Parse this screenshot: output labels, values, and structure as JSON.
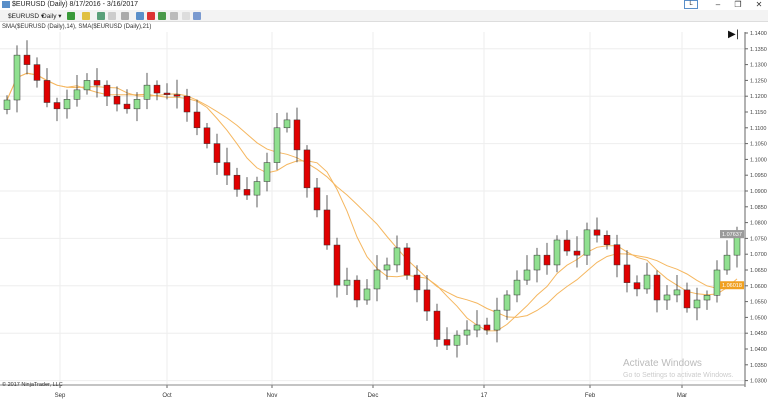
{
  "window": {
    "title": "$EURUSD (Daily)  8/17/2016 - 3/16/2017"
  },
  "toolbar": {
    "instrument": "$EURUSD",
    "interval": "Daily",
    "link_button": "L"
  },
  "legend": "SMA($EURUSD (Daily),14), SMA($EURUSD (Daily),21)",
  "copyright": "© 2017 NinjaTrader, LLC",
  "watermark": {
    "line1": "Activate Windows",
    "line2": "Go to Settings to activate Windows."
  },
  "colors": {
    "up": "#90e090",
    "down": "#e00000",
    "sma": "#f5b760",
    "last_price_bg": "#9a9a9a",
    "sma_label_bg": "#f0a020"
  },
  "chart_data": {
    "type": "candlestick",
    "yticks": [
      "1.1400",
      "1.1350",
      "1.1300",
      "1.1250",
      "1.1200",
      "1.1150",
      "1.1100",
      "1.1050",
      "1.1000",
      "1.0950",
      "1.0900",
      "1.0850",
      "1.0800",
      "1.0750",
      "1.0700",
      "1.0650",
      "1.0600",
      "1.0550",
      "1.0500",
      "1.0450",
      "1.0400",
      "1.0350",
      "1.0300"
    ],
    "ylim": [
      1.03,
      1.14
    ],
    "xticks": [
      "Sep",
      "Oct",
      "Nov",
      "Dec",
      "17",
      "Feb",
      "Mar"
    ],
    "close": [
      1.1188,
      1.133,
      1.13,
      1.125,
      1.118,
      1.116,
      1.119,
      1.122,
      1.125,
      1.1235,
      1.12,
      1.1175,
      1.116,
      1.119,
      1.1235,
      1.121,
      1.1205,
      1.12,
      1.115,
      1.11,
      1.105,
      1.099,
      1.095,
      1.0905,
      1.0887,
      1.093,
      1.099,
      1.11,
      1.1125,
      1.103,
      1.091,
      1.084,
      1.0729,
      1.0602,
      1.0618,
      1.0555,
      1.059,
      1.065,
      1.0666,
      1.072,
      1.0634,
      1.0587,
      1.052,
      1.043,
      1.0412,
      1.0444,
      1.046,
      1.0476,
      1.046,
      1.0523,
      1.0571,
      1.0618,
      1.065,
      1.0697,
      1.0666,
      1.0745,
      1.071,
      1.0697,
      1.0777,
      1.076,
      1.073,
      1.0666,
      1.061,
      1.059,
      1.0634,
      1.0555,
      1.0571,
      1.0587,
      1.053,
      1.0555,
      1.057,
      1.065,
      1.0697,
      1.0764
    ],
    "sma_periods": [
      14,
      21
    ],
    "last_price_label": "1.07637",
    "sma_label": "1.06018"
  }
}
